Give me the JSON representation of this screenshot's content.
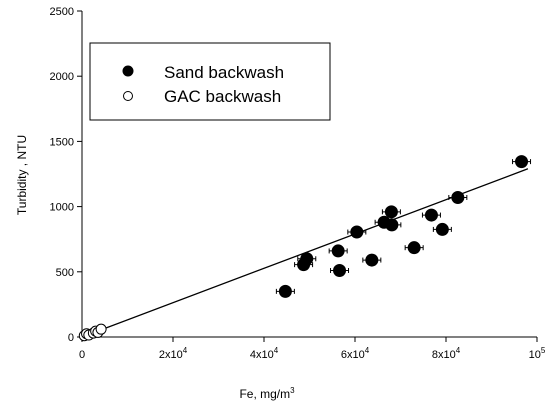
{
  "chart_data": {
    "type": "scatter",
    "title": "",
    "xlabel": "Fe, mg/m",
    "xlabel_superscript": "3",
    "ylabel": "Turbidity , NTU",
    "xlim": [
      0,
      100000
    ],
    "ylim": [
      0,
      2500
    ],
    "x_ticks": [
      {
        "value": 0,
        "base": "0",
        "exp": ""
      },
      {
        "value": 20000,
        "base": "2x10",
        "exp": "4"
      },
      {
        "value": 40000,
        "base": "4x10",
        "exp": "4"
      },
      {
        "value": 60000,
        "base": "6x10",
        "exp": "4"
      },
      {
        "value": 80000,
        "base": "8x10",
        "exp": "4"
      },
      {
        "value": 100000,
        "base": "10",
        "exp": "5"
      }
    ],
    "y_ticks": [
      {
        "value": 0,
        "label": "0"
      },
      {
        "value": 500,
        "label": "500"
      },
      {
        "value": 1000,
        "label": "1000"
      },
      {
        "value": 1500,
        "label": "1500"
      },
      {
        "value": 2000,
        "label": "2000"
      },
      {
        "value": 2500,
        "label": "2500"
      }
    ],
    "grid": false,
    "legend_position": "top-left",
    "series": [
      {
        "name": "Sand backwash",
        "marker": "filled-circle",
        "color": "#000000",
        "points": [
          {
            "x": 44700,
            "y": 350
          },
          {
            "x": 48700,
            "y": 555
          },
          {
            "x": 49400,
            "y": 600
          },
          {
            "x": 56300,
            "y": 660
          },
          {
            "x": 56600,
            "y": 510
          },
          {
            "x": 60400,
            "y": 805
          },
          {
            "x": 63700,
            "y": 590
          },
          {
            "x": 66400,
            "y": 880
          },
          {
            "x": 68000,
            "y": 960
          },
          {
            "x": 68100,
            "y": 860
          },
          {
            "x": 73000,
            "y": 685
          },
          {
            "x": 76800,
            "y": 935
          },
          {
            "x": 79200,
            "y": 825
          },
          {
            "x": 82600,
            "y": 1070
          },
          {
            "x": 96600,
            "y": 1345
          }
        ]
      },
      {
        "name": "GAC backwash",
        "marker": "open-circle",
        "color": "#000000",
        "points": [
          {
            "x": 500,
            "y": 10
          },
          {
            "x": 1000,
            "y": 25
          },
          {
            "x": 1500,
            "y": 15
          },
          {
            "x": 2500,
            "y": 30
          },
          {
            "x": 3000,
            "y": 45
          },
          {
            "x": 3500,
            "y": 35
          },
          {
            "x": 4200,
            "y": 60
          }
        ]
      }
    ],
    "fit_line": {
      "x0": 0,
      "y0": 0,
      "x1": 98000,
      "y1": 1290
    }
  }
}
